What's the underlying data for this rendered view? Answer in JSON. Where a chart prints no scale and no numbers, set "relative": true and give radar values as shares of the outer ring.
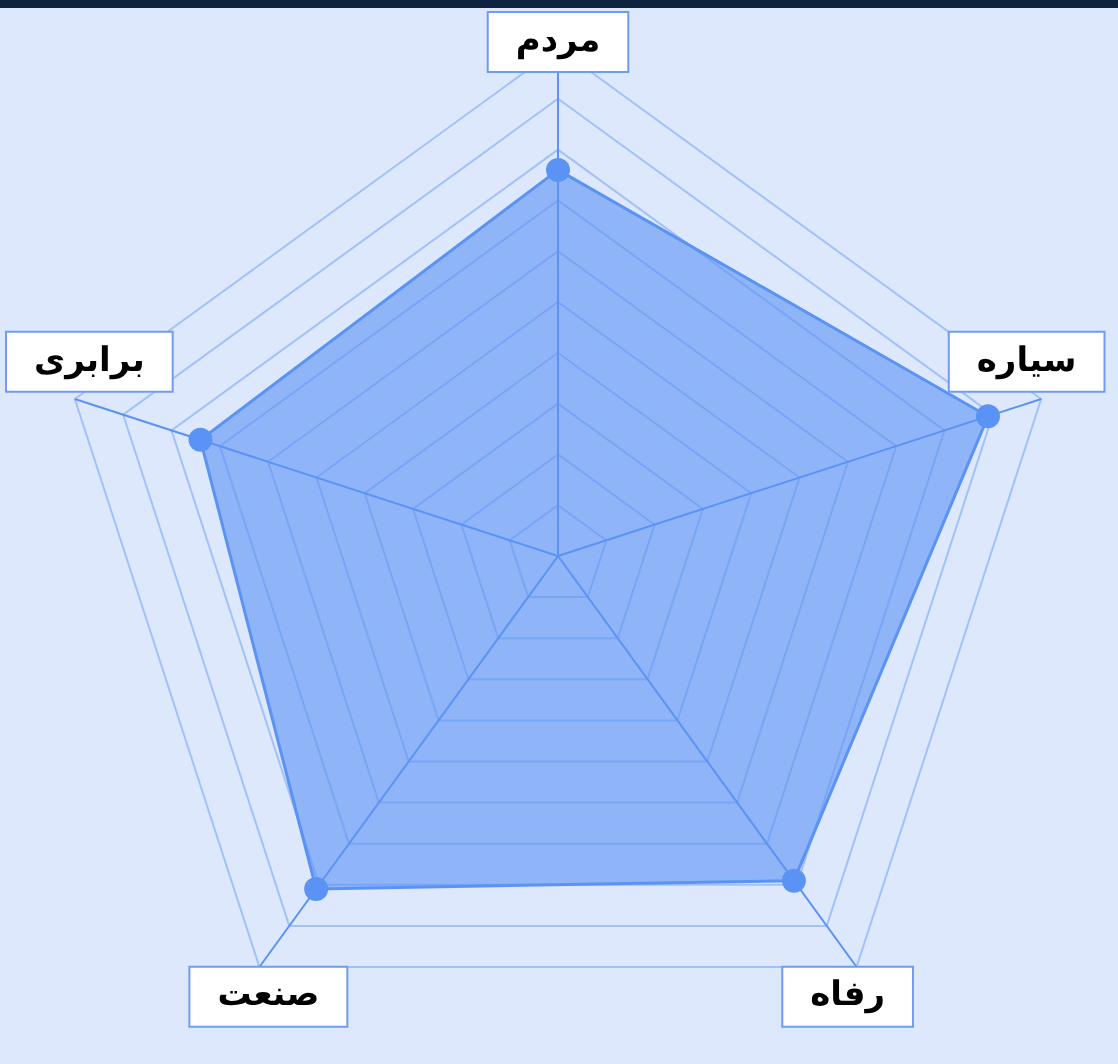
{
  "chart_data": {
    "type": "radar",
    "relative": true,
    "categories": [
      "مردم",
      "سیاره",
      "رفاه",
      "صنعت",
      "برابری"
    ],
    "series": [
      {
        "color": "#5b93f5",
        "values": [
          0.76,
          0.89,
          0.79,
          0.81,
          0.74
        ]
      }
    ],
    "grid": true,
    "marker": "circle",
    "legend": false
  }
}
